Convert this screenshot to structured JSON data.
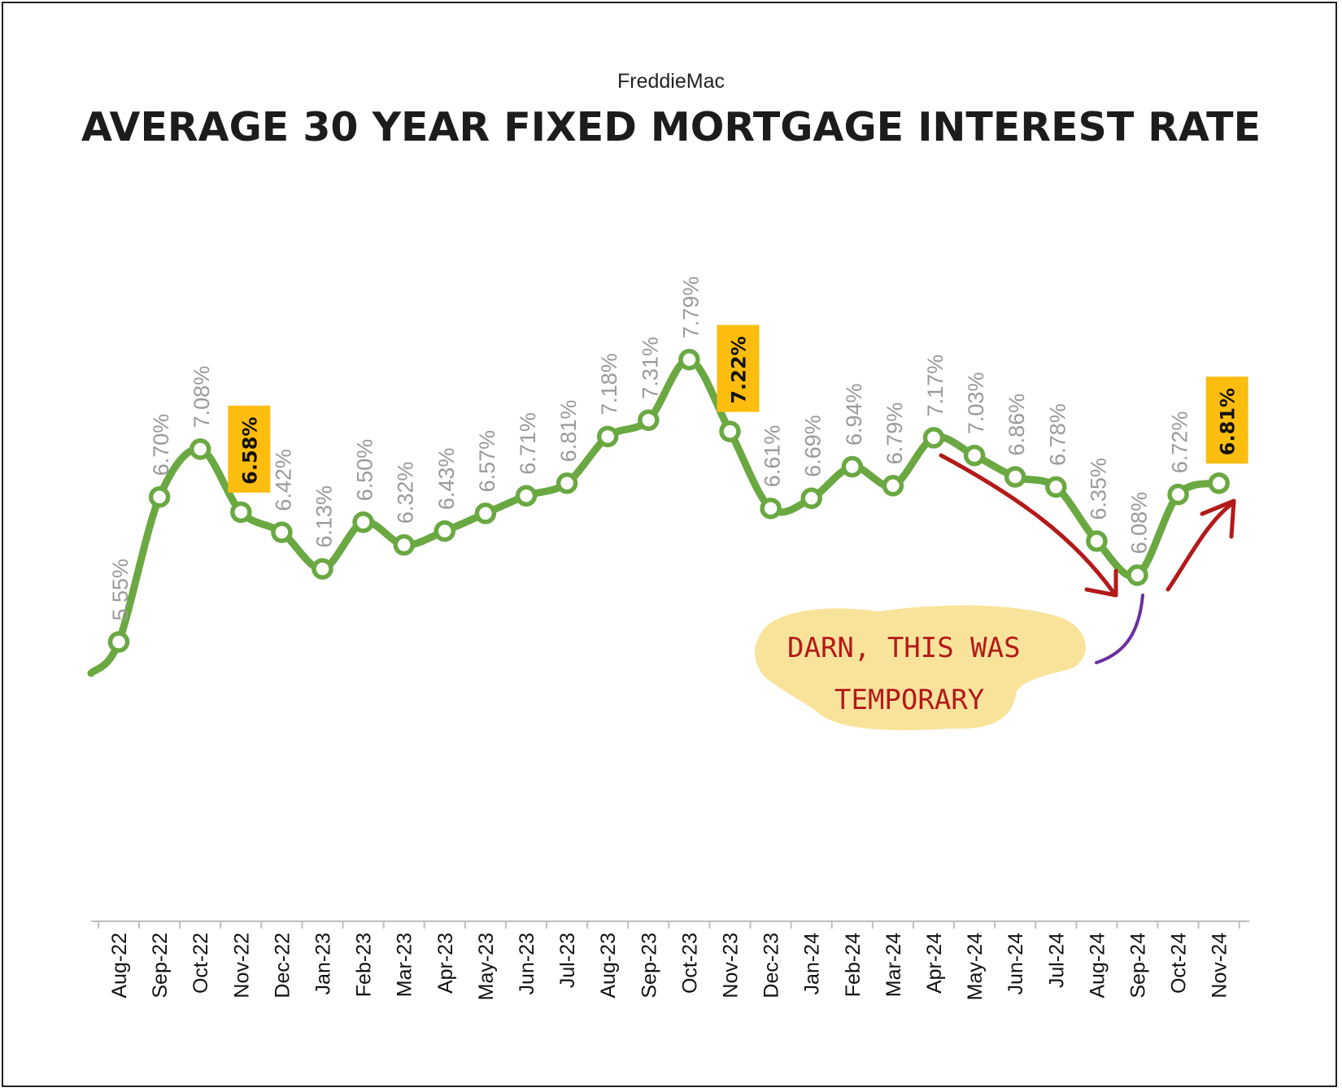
{
  "source": "FreddieMac",
  "title": "AVERAGE 30 YEAR FIXED MORTGAGE INTEREST RATE",
  "chart_data": {
    "type": "line",
    "categories": [
      "Aug-22",
      "Sep-22",
      "Oct-22",
      "Nov-22",
      "Dec-22",
      "Jan-23",
      "Feb-23",
      "Mar-23",
      "Apr-23",
      "May-23",
      "Jun-23",
      "Jul-23",
      "Aug-23",
      "Sep-23",
      "Oct-23",
      "Nov-23",
      "Dec-23",
      "Jan-24",
      "Feb-24",
      "Mar-24",
      "Apr-24",
      "May-24",
      "Jun-24",
      "Jul-24",
      "Aug-24",
      "Sep-24",
      "Oct-24",
      "Nov-24"
    ],
    "values": [
      5.55,
      6.7,
      7.08,
      6.58,
      6.42,
      6.13,
      6.5,
      6.32,
      6.43,
      6.57,
      6.71,
      6.81,
      7.18,
      7.31,
      7.79,
      7.22,
      6.61,
      6.69,
      6.94,
      6.79,
      7.17,
      7.03,
      6.86,
      6.78,
      6.35,
      6.08,
      6.72,
      6.81
    ],
    "data_labels": [
      "5.55%",
      "6.70%",
      "7.08%",
      "6.58%",
      "6.42%",
      "6.13%",
      "6.50%",
      "6.32%",
      "6.43%",
      "6.57%",
      "6.71%",
      "6.81%",
      "7.18%",
      "7.31%",
      "7.79%",
      "7.22%",
      "6.61%",
      "6.69%",
      "6.94%",
      "6.79%",
      "7.17%",
      "7.03%",
      "6.86%",
      "6.78%",
      "6.35%",
      "6.08%",
      "6.72%",
      "6.81%"
    ],
    "highlighted": [
      "Nov-22",
      "Nov-23",
      "Nov-24"
    ],
    "ylim": [
      5.3,
      8.0
    ],
    "grid": false,
    "legend": "none",
    "xlabel": "",
    "ylabel": "",
    "annotation": {
      "lines": [
        "DARN, THIS WAS",
        "TEMPORARY"
      ],
      "placement": "bottom-right, pointing at Sep-24"
    }
  },
  "colors": {
    "line": "#6aa842",
    "marker_fill": "#ffffff",
    "highlight_bg": "#fdbd0f",
    "arrow": "#b31a1a",
    "pointer": "#6b2fa0",
    "note_bg": "#f9e39b",
    "axis": "#bfbfbf"
  }
}
